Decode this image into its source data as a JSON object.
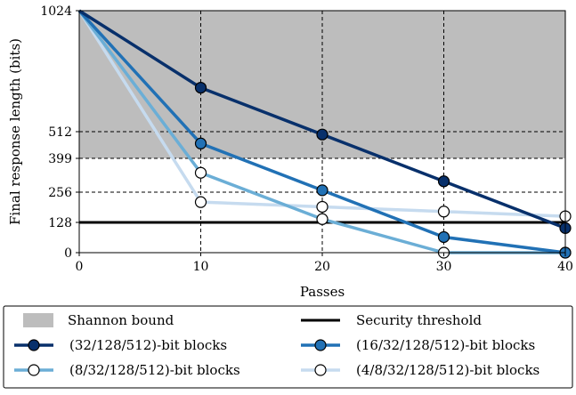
{
  "chart_data": {
    "type": "line",
    "xlabel": "Passes",
    "ylabel": "Final response length (bits)",
    "x_ticks": [
      0,
      10,
      20,
      30,
      40
    ],
    "y_ticks": [
      0,
      128,
      256,
      399,
      512,
      1024
    ],
    "xlim": [
      0,
      40
    ],
    "ylim": [
      0,
      1024
    ],
    "grid": "dashed at tick positions",
    "legend_placement": "below plot",
    "shannon_bound": {
      "name": "Shannon bound",
      "value": 399,
      "color": "#bdbdbd"
    },
    "threshold": {
      "name": "Security threshold",
      "value": 128,
      "color": "#000000"
    },
    "series": [
      {
        "name": "(32/128/512)-bit blocks",
        "color": "#08306b",
        "x": [
          0,
          10,
          20,
          30,
          40
        ],
        "y": [
          1024,
          698,
          500,
          302,
          104
        ],
        "marker_fill": "#08306b"
      },
      {
        "name": "(16/32/128/512)-bit blocks",
        "color": "#2171b5",
        "x": [
          0,
          10,
          20,
          30,
          40
        ],
        "y": [
          1024,
          462,
          264,
          66,
          0
        ],
        "marker_fill": "#2171b5"
      },
      {
        "name": "(8/32/128/512)-bit blocks",
        "color": "#6baed6",
        "x": [
          0,
          10,
          20,
          30,
          40
        ],
        "y": [
          1024,
          338,
          142,
          0,
          0
        ],
        "marker_fill": "#ffffff"
      },
      {
        "name": "(4/8/32/128/512)-bit blocks",
        "color": "#c6dbef",
        "x": [
          0,
          10,
          20,
          30,
          40
        ],
        "y": [
          1024,
          214,
          194,
          174,
          154
        ],
        "marker_fill": "#ffffff"
      }
    ]
  }
}
